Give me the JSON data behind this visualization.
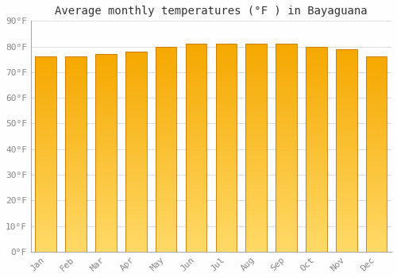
{
  "title": "Average monthly temperatures (°F ) in Bayaguana",
  "months": [
    "Jan",
    "Feb",
    "Mar",
    "Apr",
    "May",
    "Jun",
    "Jul",
    "Aug",
    "Sep",
    "Oct",
    "Nov",
    "Dec"
  ],
  "values": [
    76,
    76,
    77,
    78,
    80,
    81,
    81,
    81,
    81,
    80,
    79,
    76
  ],
  "bar_color_top": "#F5A800",
  "bar_color_bottom": "#FFD966",
  "bar_edge_color": "#C87800",
  "background_color": "#FEFEFE",
  "grid_color": "#DDDDDD",
  "ylabel_ticks": [
    "0°F",
    "10°F",
    "20°F",
    "30°F",
    "40°F",
    "50°F",
    "60°F",
    "70°F",
    "80°F",
    "90°F"
  ],
  "ytick_values": [
    0,
    10,
    20,
    30,
    40,
    50,
    60,
    70,
    80,
    90
  ],
  "ylim": [
    0,
    90
  ],
  "title_fontsize": 10,
  "tick_fontsize": 8,
  "font_family": "monospace",
  "bar_width": 0.7,
  "gradient_steps": 100
}
